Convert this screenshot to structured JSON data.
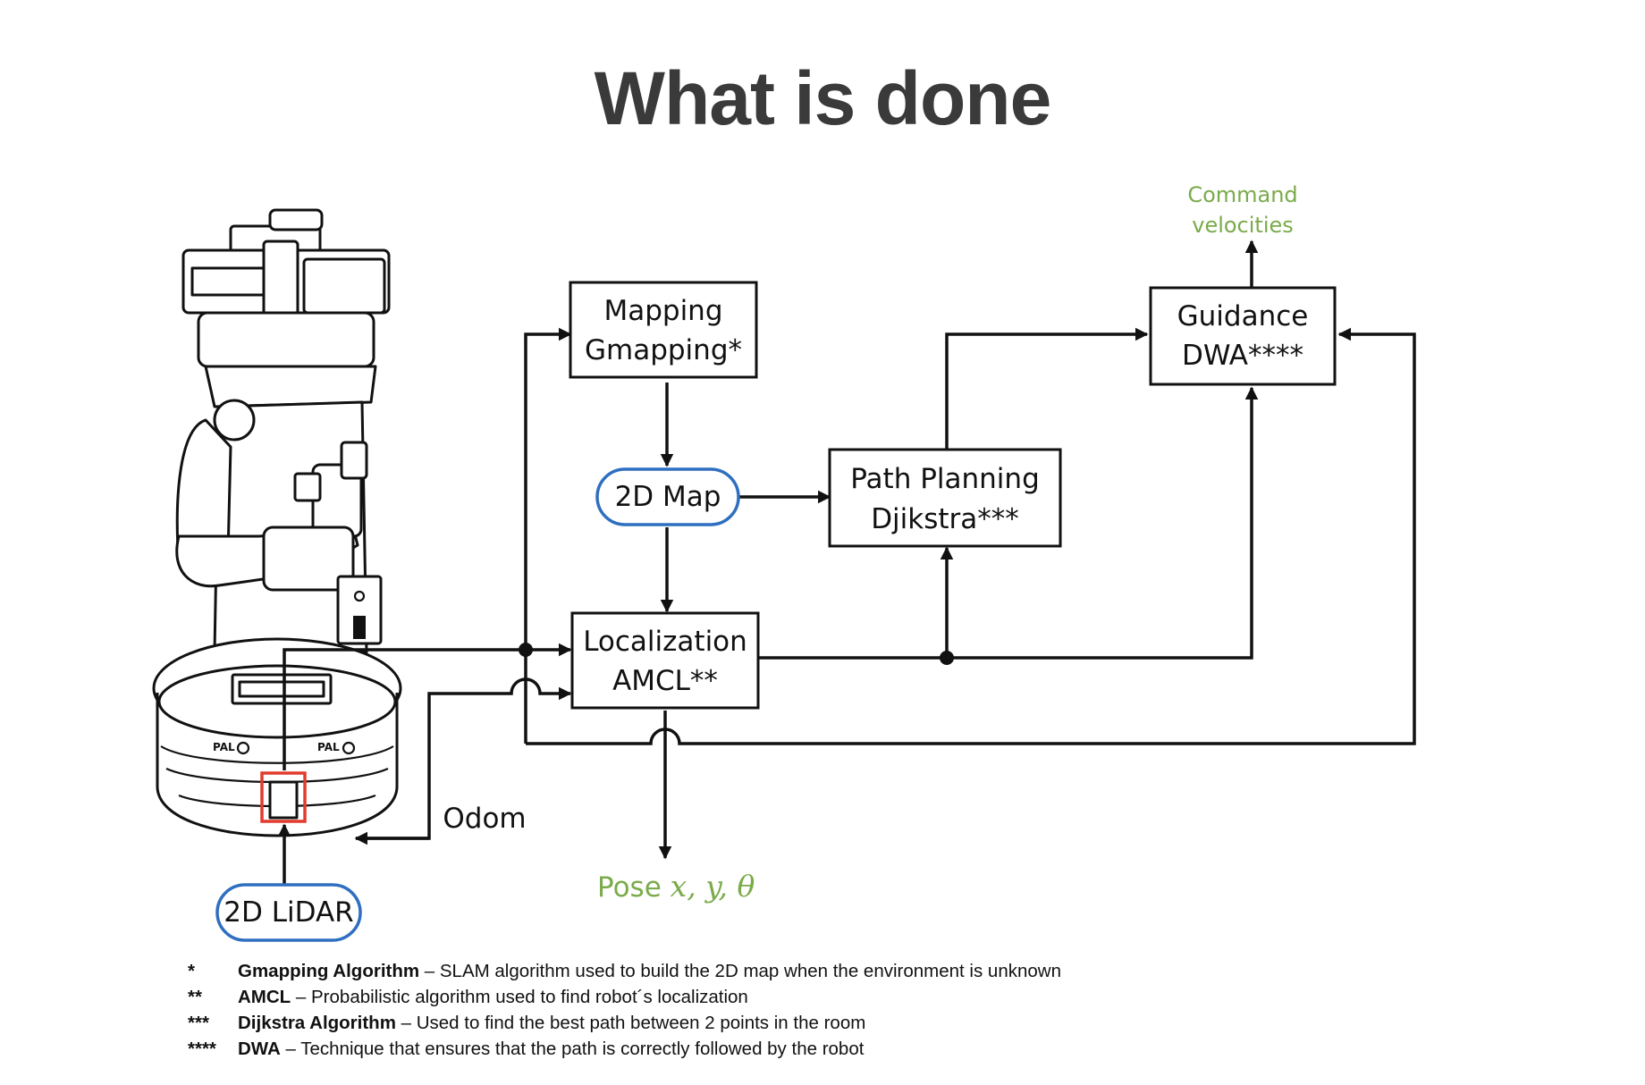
{
  "title": "What is done",
  "nodes": {
    "mapping": [
      "Mapping",
      "Gmapping*"
    ],
    "map2d": "2D Map",
    "path_planning": [
      "Path Planning",
      "Djikstra***"
    ],
    "localization": [
      "Localization",
      "AMCL**"
    ],
    "guidance": [
      "Guidance",
      "DWA****"
    ],
    "lidar": "2D LiDAR"
  },
  "labels": {
    "command": [
      "Command",
      "velocities"
    ],
    "odom": "Odom",
    "pose_prefix": "Pose ",
    "pose_vars": "x, y, θ"
  },
  "footnotes": [
    {
      "mark": "*",
      "term": "Gmapping Algorithm",
      "desc": " – SLAM algorithm used to build the 2D map when the environment is unknown"
    },
    {
      "mark": "**",
      "term": "AMCL",
      "desc": " – Probabilistic algorithm used to find robot´s localization"
    },
    {
      "mark": "***",
      "term": "Dijkstra Algorithm",
      "desc": " – Used to find the best path between 2 points in the room"
    },
    {
      "mark": "****",
      "term": "DWA",
      "desc": " – Technique that ensures that the path is correctly followed by the robot"
    }
  ],
  "colors": {
    "accent_green": "#7aab4a",
    "pill_blue": "#2f6fc0",
    "title_gray": "#3a3a3a",
    "highlight_red": "#e23b2e"
  }
}
